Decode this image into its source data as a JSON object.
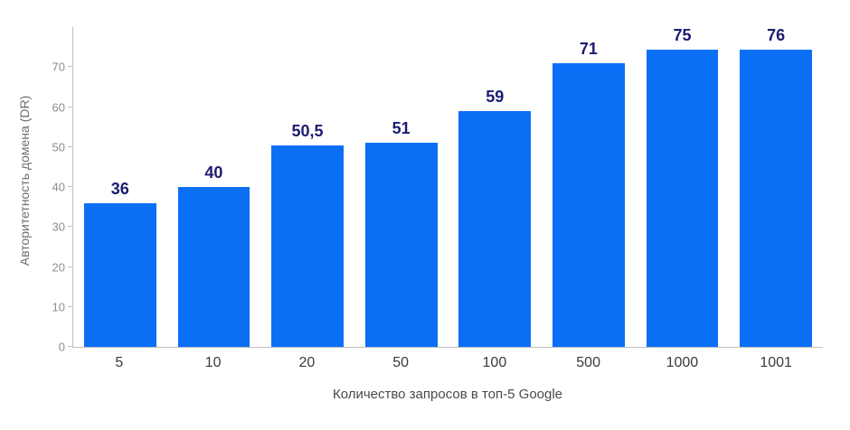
{
  "chart_data": {
    "type": "bar",
    "categories": [
      "5",
      "10",
      "20",
      "50",
      "100",
      "500",
      "1000",
      "1001"
    ],
    "values": [
      36,
      40,
      50.5,
      51,
      59,
      71,
      75,
      76
    ],
    "value_labels": [
      "36",
      "40",
      "50,5",
      "51",
      "59",
      "71",
      "75",
      "76"
    ],
    "title": "",
    "xlabel": "Количество запросов в топ-5 Google",
    "ylabel": "Авторитетность домена (DR)",
    "ylim": [
      0,
      80
    ],
    "yticks": [
      0,
      10,
      20,
      30,
      40,
      50,
      60,
      70
    ],
    "grid": false,
    "legend_position": "none",
    "colors": {
      "bar": "#0b6ff5",
      "value_label": "#1c1c70",
      "axis": "#c0c0c0",
      "y_tick_text": "#8e8e8e",
      "x_tick_text": "#3b3b3b",
      "y_axis_title": "#6e6e6e",
      "x_axis_title": "#4a4a4a",
      "background": "#ffffff"
    }
  }
}
